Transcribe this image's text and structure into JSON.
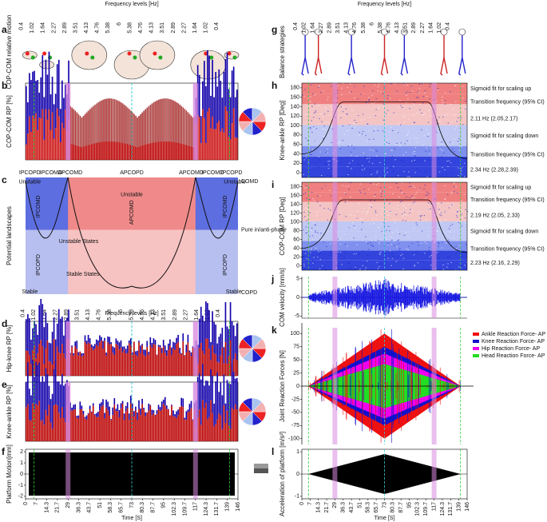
{
  "frequency_axis": {
    "label": "Frequency levels [Hz]",
    "ticks": [
      "0.4",
      "1.02",
      "1.64",
      "2.27",
      "2.89",
      "3.51",
      "4.13",
      "4.76",
      "5.38",
      "6",
      "5.38",
      "4.76",
      "4.13",
      "3.51",
      "2.89",
      "2.27",
      "1.64",
      "1.02",
      "0.4"
    ]
  },
  "time_axis": {
    "label": "Time [S]",
    "ticks": [
      "0",
      "7",
      "14.3",
      "21.7",
      "29",
      "36.3",
      "43.7",
      "51",
      "58.3",
      "65.7",
      "73",
      "80.3",
      "87.7",
      "95",
      "102.3",
      "109.7",
      "117",
      "124.3",
      "131.7",
      "139",
      "146"
    ]
  },
  "panels": [
    {
      "letter": "a",
      "ylabel": "COP-COM relative motion"
    },
    {
      "letter": "b",
      "ylabel": "COP-COM RP [%]"
    },
    {
      "letter": "c",
      "ylabel": "Potential landscapes",
      "phase_labels": [
        "IPCOPD",
        "IPCOMD",
        "APCOMD",
        "APCOPD",
        "APCOMD",
        "IPCOMD",
        "IPCOPD"
      ],
      "labels": [
        "Unstable",
        "Unstable",
        "Unstable",
        "IPCOMD",
        "IPCOMD",
        "APCOMD",
        "IPCOPD",
        "IPCOPD",
        "Unstable States",
        "Stable States",
        "Stable",
        "Stable",
        "COMD",
        "Pure in/anti-phase",
        "COPD"
      ]
    },
    {
      "letter": "d",
      "ylabel": "Hip-knee RP [%]"
    },
    {
      "letter": "e",
      "ylabel": "Knee-ankle RP [%]"
    },
    {
      "letter": "f",
      "ylabel": "Platform Motion[mm]",
      "yticks": [
        "-2",
        "-1",
        "0",
        "1",
        "2"
      ]
    },
    {
      "letter": "g",
      "ylabel": "Balance strategies"
    },
    {
      "letter": "h",
      "ylabel": "Knee-ankle RP [Deg]",
      "yticks": [
        "0",
        "20",
        "40",
        "60",
        "80",
        "100",
        "120",
        "140",
        "160",
        "180"
      ],
      "notes": [
        "Sigmoid fit for scaling up",
        "Transition frequency (95% CI)",
        "2.11 Hz (2.05,2.17)",
        "Sigmoid fit for scaling down",
        "Transition frequency (95% CI)",
        "2.34 Hz (2.28,2.39)"
      ]
    },
    {
      "letter": "i",
      "ylabel": "COP-COM RP [Deg]",
      "yticks": [
        "0",
        "20",
        "40",
        "60",
        "80",
        "100",
        "120",
        "140",
        "160",
        "180"
      ],
      "notes": [
        "Sigmoid fit for scaling up",
        "Transition frequency (95% CI)",
        "2.19 Hz (2.05, 2.33)",
        "Sigmoid fit for scaling down",
        "Transition frequency (95% CI)",
        "2.23 Hz (2.16, 2.29)"
      ]
    },
    {
      "letter": "j",
      "ylabel": "COM velocity [mm/s]",
      "yticks": [
        "-5",
        "0",
        "5"
      ]
    },
    {
      "letter": "k",
      "ylabel": "Joint Reaction Forces [N]",
      "yticks": [
        "-100",
        "-75",
        "-50",
        "-25",
        "0",
        "25",
        "50",
        "75",
        "100"
      ],
      "legend": [
        "Ankle Reaction Force- AP",
        "Knee Reaction Force- AP",
        "Hip Reaction Force- AP",
        "Head Reaction Force- AP"
      ]
    },
    {
      "letter": "l",
      "ylabel": "Acceleration of platform [m/s²]",
      "yticks": [
        "-1",
        "0",
        "1"
      ]
    }
  ]
}
